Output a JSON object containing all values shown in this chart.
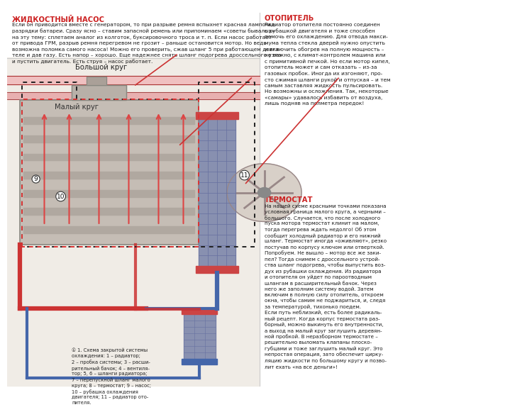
{
  "bg_color": "#f5f0eb",
  "page_bg": "#ffffff",
  "title_насос": "ЖИДКОСТНЫЙ НАСОС",
  "title_отопитель": "ОТОПИТЕЛЬ",
  "title_термостат": "ТЕРМОСТАТ",
  "title_color": "#cc2222",
  "body_color": "#1a1a1a",
  "text_насос": "Если он приводится вместе с генератором, то при разрыве ремня вспыхнет красная лампочка\nразрядки батареи. Сразу ясно – ставим запасной ремень или припоминаем «советы бывалых»\nна эту тему: сплетаем аналог из колготок, буксировочного троса и т. п. Если насос работает\nот привода ГРМ, разрыв ремня перегревом не грозит – раньше остановится мотор. Но ведь\nвозможна поломка самого насоса! Можно его проверить, сжав шланг 5 при работающем двига-\nтеле и дав газу. Есть напор – хорошо. Еще надежнее снять шланг подогрева дроссельного узла\nи пустить двигатель. Есть струя – насос работает.",
  "text_отопитель": "Радиатор отопителя постоянно соединен\nс рубашкой двигателя и тоже способен\nпомочь его охлаждению. Для отвода макси-\nмума тепла стекла дверей нужно опустить\nи включить обогрев на полную мощность –\nне важно, с климат-контролем машина или\nс примитивной печкой. Но если мотор кипел,\nотопитель может и сам отказать – из-за\nгазовых пробок. Иногда их изгоняют, про-\nсто сжимая шланги рукой и отпуская – и тем\nсамым заставляя жидкость пульсировать.\nНо возможны и осложнения. Так, некоторые\n«самары» удавалось избавить от воздуха,\nлишь подняв на полметра передок!",
  "text_термостат": "На нашей схеме красными точками показана\nусловная граница малого круга, а черными –\nбольшого. Случается, что после холодного\nпуска мотора термостат клинит на малом,\nтогда перегрева ждать недолго! Об этом\nсообщит холодный радиатор и его нижний\nшланг. Термостат иногда «oживляют», резко\nпостучав по корпусу ключом или отверткой.\nПопробуем. Не вышло – мотор все же заки-\nпел? Тогда снимем с дроссельного устрой-\nства шланг подогрева, чтобы выпустить воз-\nдух из рубашки охлаждения. Из радиатора\nи отопителя он уйдет по пароотводным\nшлангам в расширительный бачок. Через\nнего же заполним систему водой. Затем\nвключим в полную силу отопитель, откроем\nокна, чтобы самим не поджариться, и, следя\nза температурой, тихонько поедем.\nЕсли путь неблизкий, есть более радикаль-\nный рецепт. Когда корпус термостата раз-\nборный, можно выкинуть его внутренности,\nа выход на малый круг заглушить деревян-\nной пробкой. В неразборном термостате –\nрешительно выломать клапаны плоско-\nгубцами и тоже заглушить малый круг. Это\nнепростая операция, зато обеспечит цирку-\nляцию жидкости по большому кругу и позво-\nлит ехать «на все деньги»!",
  "caption_text": "① 1. Схема закрытой системы\nохлаждения: 1 – радиатор;\n2 – пробка системы; 3 – расши-\nрительный бачок; 4 – вентиля-\nтор; 5, 6 – шланги радиатора;\n7 – перепускной шланг малого\nкруга; 8 – термостат; 9 – насос;\n10 – рубашка охлаждения\nдвигателя; 11 – радиатор ото-\nпителя.",
  "pipe_red": "#cc3333",
  "pipe_blue": "#4466aa",
  "small_circle_color": "#cc3333",
  "big_circle_color": "#222222"
}
